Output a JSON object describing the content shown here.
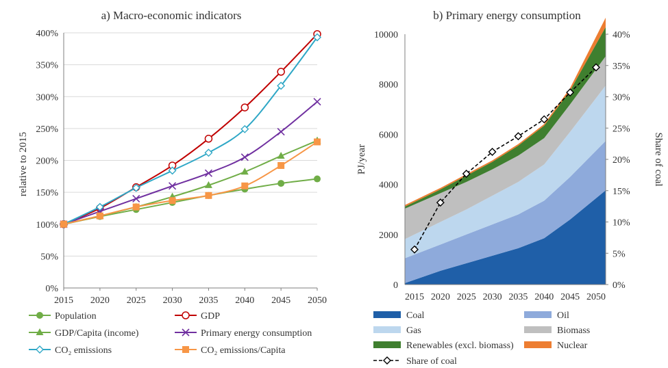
{
  "chart_data": [
    {
      "type": "line",
      "title": "a) Macro-economic indicators",
      "xlabel": "",
      "ylabel": "relative to 2015",
      "x": [
        2015,
        2020,
        2025,
        2030,
        2035,
        2040,
        2045,
        2050
      ],
      "ylim": [
        0,
        400
      ],
      "yticks": [
        "0%",
        "50%",
        "100%",
        "150%",
        "200%",
        "250%",
        "300%",
        "350%",
        "400%"
      ],
      "grid": true,
      "legend_position": "bottom",
      "series": [
        {
          "name": "Population",
          "color": "#70ad47",
          "marker": "circle",
          "values": [
            100,
            112,
            123,
            134,
            145,
            155,
            164,
            171
          ]
        },
        {
          "name": "GDP",
          "color": "#c00000",
          "marker": "open-circle",
          "values": [
            100,
            125,
            158,
            192,
            234,
            283,
            339,
            398
          ]
        },
        {
          "name": "GDP/Capita (income)",
          "color": "#70ad47",
          "marker": "triangle",
          "values": [
            100,
            113,
            127,
            143,
            161,
            182,
            207,
            231
          ]
        },
        {
          "name": "Primary energy consumption",
          "color": "#7030a0",
          "marker": "x",
          "values": [
            100,
            120,
            140,
            160,
            180,
            205,
            245,
            292
          ]
        },
        {
          "name": "CO₂ emissions",
          "color": "#2ea7c6",
          "marker": "open-diamond",
          "values": [
            100,
            127,
            157,
            184,
            212,
            249,
            317,
            393
          ]
        },
        {
          "name": "CO₂ emissions/Capita",
          "color": "#f79646",
          "marker": "square",
          "values": [
            100,
            113,
            127,
            137,
            145,
            160,
            192,
            229
          ]
        }
      ]
    },
    {
      "type": "area",
      "stacked": true,
      "title": "b) Primary energy consumption",
      "xlabel": "",
      "ylabel": "PJ/year",
      "y2label": "Share of coal",
      "x": [
        2015,
        2020,
        2025,
        2030,
        2035,
        2040,
        2045,
        2050
      ],
      "ylim": [
        0,
        10000
      ],
      "yticks": [
        "0",
        "2000",
        "4000",
        "6000",
        "8000",
        "10000"
      ],
      "y2lim": [
        0,
        40
      ],
      "y2ticks": [
        "0%",
        "5%",
        "10%",
        "15%",
        "20%",
        "25%",
        "30%",
        "35%",
        "40%"
      ],
      "grid": false,
      "legend_position": "bottom",
      "series": [
        {
          "name": "Coal",
          "color": "#1f5fa8",
          "values": [
            190,
            550,
            850,
            1150,
            1450,
            1850,
            2600,
            3450
          ]
        },
        {
          "name": "Oil",
          "color": "#8eaadb",
          "values": [
            1010,
            1050,
            1150,
            1250,
            1350,
            1500,
            1700,
            1900
          ]
        },
        {
          "name": "Gas",
          "color": "#bdd7ee",
          "values": [
            800,
            900,
            1000,
            1150,
            1300,
            1450,
            1800,
            2100
          ]
        },
        {
          "name": "Biomass",
          "color": "#bfbfbf",
          "values": [
            1200,
            1150,
            1100,
            1050,
            1050,
            1050,
            1100,
            1150
          ]
        },
        {
          "name": "Renewables (excl. biomass)",
          "color": "#3f7f2f",
          "values": [
            100,
            150,
            250,
            300,
            400,
            500,
            550,
            1000
          ]
        },
        {
          "name": "Nuclear",
          "color": "#ed7d31",
          "values": [
            60,
            60,
            60,
            60,
            60,
            60,
            100,
            300
          ]
        }
      ],
      "line_series": {
        "name": "Share of coal",
        "axis": "right",
        "color": "#000000",
        "marker": "open-diamond",
        "dashed": true,
        "values": [
          5.6,
          13.1,
          17.7,
          21.2,
          23.7,
          26.4,
          30.7,
          34.7
        ]
      }
    }
  ]
}
